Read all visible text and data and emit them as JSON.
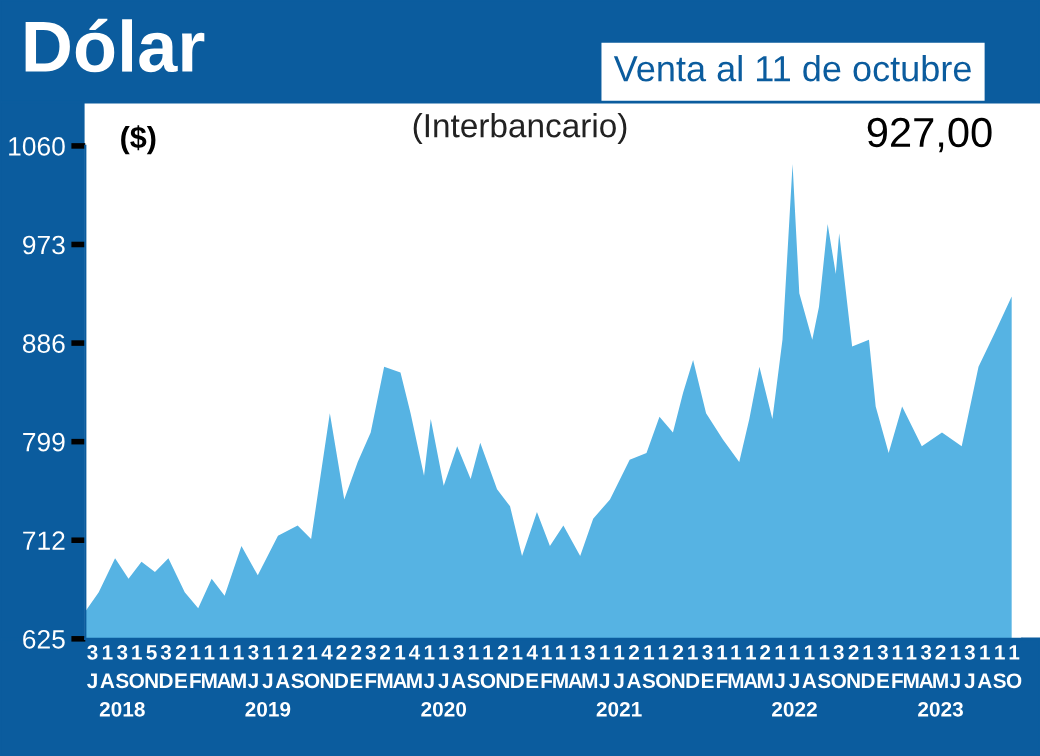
{
  "chart_data": {
    "type": "area",
    "title": "Dólar",
    "subtitle": "(Interbancario)",
    "ylabel": "($)",
    "annotations": [
      "Venta al 11 de octubre",
      "927,00"
    ],
    "series": [
      {
        "color": "#56b3e3",
        "x": [
          "2018-07-01",
          "2018-07-29",
          "2018-09-01",
          "2018-09-29",
          "2018-10-26",
          "2018-11-23",
          "2018-12-21",
          "2019-01-24",
          "2019-02-21",
          "2019-03-21",
          "2019-04-17",
          "2019-05-22",
          "2019-06-25",
          "2019-08-06",
          "2019-09-16",
          "2019-10-14",
          "2019-11-22",
          "2019-12-22",
          "2020-01-19",
          "2020-02-15",
          "2020-03-14",
          "2020-04-17",
          "2020-05-08",
          "2020-06-05",
          "2020-06-19",
          "2020-07-16",
          "2020-08-13",
          "2020-09-10",
          "2020-09-30",
          "2020-11-04",
          "2020-12-01",
          "2020-12-26",
          "2021-01-26",
          "2021-02-22",
          "2021-03-22",
          "2021-04-26",
          "2021-05-23",
          "2021-06-27",
          "2021-08-07",
          "2021-09-11",
          "2021-10-08",
          "2021-11-05",
          "2021-11-26",
          "2021-12-17",
          "2022-01-13",
          "2022-02-17",
          "2022-03-23",
          "2022-04-13",
          "2022-05-04",
          "2022-05-31",
          "2022-06-21",
          "2022-07-12",
          "2022-07-26",
          "2022-08-22",
          "2022-09-05",
          "2022-09-23",
          "2022-10-10",
          "2022-10-17",
          "2022-11-13",
          "2022-12-18",
          "2023-01-01",
          "2023-01-28",
          "2023-02-25",
          "2023-04-07",
          "2023-05-19",
          "2023-06-29",
          "2023-08-03",
          "2023-09-06",
          "2023-10-11"
        ],
        "values": [
          649,
          666,
          696,
          678,
          693,
          684,
          696,
          666,
          652,
          678,
          663,
          707,
          681,
          716,
          725,
          713,
          824,
          748,
          781,
          807,
          865,
          860,
          824,
          769,
          819,
          760,
          795,
          766,
          798,
          757,
          742,
          698,
          737,
          707,
          725,
          698,
          731,
          748,
          783,
          789,
          821,
          807,
          842,
          871,
          824,
          801,
          781,
          819,
          865,
          819,
          889,
          1044,
          930,
          889,
          918,
          991,
          947,
          983,
          883,
          889,
          830,
          789,
          830,
          795,
          807,
          795,
          865,
          895,
          927
        ]
      }
    ],
    "xlim": [
      "2018-07-01",
      "2023-10-31"
    ],
    "xticks": [
      {
        "value": "2018-07-16",
        "label": "3\nJ"
      },
      {
        "value": "2018-08-16",
        "label": "1\nA"
      },
      {
        "value": "2018-09-16",
        "label": "3\nS\n2018"
      },
      {
        "value": "2018-10-16",
        "label": "1\nO"
      },
      {
        "value": "2018-11-16",
        "label": "5\nN"
      },
      {
        "value": "2018-12-16",
        "label": "3\nD"
      },
      {
        "value": "2019-01-16",
        "label": "2\nE"
      },
      {
        "value": "2019-02-15",
        "label": "1\nF"
      },
      {
        "value": "2019-03-16",
        "label": "1\nM"
      },
      {
        "value": "2019-04-16",
        "label": "1\nA"
      },
      {
        "value": "2019-05-16",
        "label": "1\nM"
      },
      {
        "value": "2019-06-16",
        "label": "3\nJ"
      },
      {
        "value": "2019-07-16",
        "label": "1\nJ\n2019"
      },
      {
        "value": "2019-08-16",
        "label": "1\nA"
      },
      {
        "value": "2019-09-16",
        "label": "2\nS"
      },
      {
        "value": "2019-10-16",
        "label": "1\nO"
      },
      {
        "value": "2019-11-16",
        "label": "4\nN"
      },
      {
        "value": "2019-12-16",
        "label": "2\nD"
      },
      {
        "value": "2020-01-16",
        "label": "2\nE"
      },
      {
        "value": "2020-02-15",
        "label": "3\nF"
      },
      {
        "value": "2020-03-16",
        "label": "2\nM"
      },
      {
        "value": "2020-04-16",
        "label": "1\nA"
      },
      {
        "value": "2020-05-16",
        "label": "4\nM"
      },
      {
        "value": "2020-06-16",
        "label": "1\nJ"
      },
      {
        "value": "2020-07-16",
        "label": "1\nJ\n2020"
      },
      {
        "value": "2020-08-16",
        "label": "3\nA"
      },
      {
        "value": "2020-09-16",
        "label": "1\nS"
      },
      {
        "value": "2020-10-16",
        "label": "1\nO"
      },
      {
        "value": "2020-11-16",
        "label": "2\nN"
      },
      {
        "value": "2020-12-16",
        "label": "1\nD"
      },
      {
        "value": "2021-01-16",
        "label": "4\nE"
      },
      {
        "value": "2021-02-15",
        "label": "1\nF"
      },
      {
        "value": "2021-03-16",
        "label": "1\nM"
      },
      {
        "value": "2021-04-16",
        "label": "1\nA"
      },
      {
        "value": "2021-05-16",
        "label": "3\nM"
      },
      {
        "value": "2021-06-16",
        "label": "1\nJ"
      },
      {
        "value": "2021-07-16",
        "label": "1\nJ\n2021"
      },
      {
        "value": "2021-08-16",
        "label": "2\nA"
      },
      {
        "value": "2021-09-16",
        "label": "1\nS"
      },
      {
        "value": "2021-10-16",
        "label": "1\nO"
      },
      {
        "value": "2021-11-16",
        "label": "2\nN"
      },
      {
        "value": "2021-12-16",
        "label": "1\nD"
      },
      {
        "value": "2022-01-16",
        "label": "3\nE"
      },
      {
        "value": "2022-02-15",
        "label": "1\nF"
      },
      {
        "value": "2022-03-16",
        "label": "1\nM"
      },
      {
        "value": "2022-04-16",
        "label": "1\nA"
      },
      {
        "value": "2022-05-16",
        "label": "2\nM"
      },
      {
        "value": "2022-06-16",
        "label": "1\nJ"
      },
      {
        "value": "2022-07-16",
        "label": "1\nJ\n2022"
      },
      {
        "value": "2022-08-16",
        "label": "1\nA"
      },
      {
        "value": "2022-09-16",
        "label": "1\nS"
      },
      {
        "value": "2022-10-16",
        "label": "3\nO"
      },
      {
        "value": "2022-11-16",
        "label": "2\nN"
      },
      {
        "value": "2022-12-16",
        "label": "1\nD"
      },
      {
        "value": "2023-01-16",
        "label": "3\nE"
      },
      {
        "value": "2023-02-15",
        "label": "1\nF"
      },
      {
        "value": "2023-03-16",
        "label": "1\nM"
      },
      {
        "value": "2023-04-16",
        "label": "3\nA"
      },
      {
        "value": "2023-05-16",
        "label": "2\nM\n2023"
      },
      {
        "value": "2023-06-16",
        "label": "1\nJ"
      },
      {
        "value": "2023-07-16",
        "label": "3\nJ"
      },
      {
        "value": "2023-08-16",
        "label": "1\nA"
      },
      {
        "value": "2023-09-16",
        "label": "1\nS"
      },
      {
        "value": "2023-10-16",
        "label": "1\nO"
      }
    ],
    "ylim": [
      625,
      1060
    ],
    "yticks": [
      625,
      712,
      799,
      886,
      973,
      1060
    ],
    "grid": false,
    "legend": false
  }
}
